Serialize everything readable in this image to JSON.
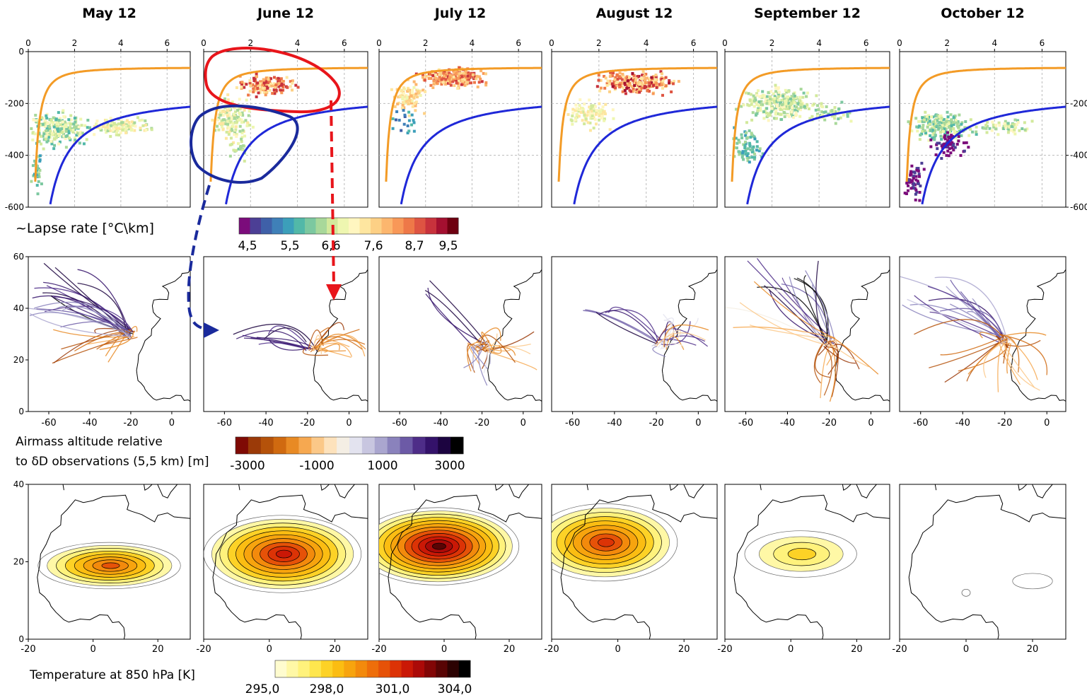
{
  "months": [
    "May 12",
    "June 12",
    "July 12",
    "August 12",
    "September 12",
    "October 12"
  ],
  "rows": {
    "scatter": {
      "x_ticks": [
        "0",
        "2",
        "4",
        "6"
      ],
      "y_ticks_left": [
        "0",
        "-200",
        "-400",
        "-600"
      ],
      "y_ticks_right": [
        "-200",
        "-400",
        "-600"
      ],
      "xlim": [
        0,
        7
      ],
      "ylim": [
        -600,
        0
      ],
      "colorbar": {
        "label": "~Lapse rate [°C\\km]",
        "ticks": [
          "4,5",
          "5,5",
          "6,6",
          "7,6",
          "8,7",
          "9,5"
        ],
        "colors": [
          "#7b0c7b",
          "#4c3f95",
          "#3f60a8",
          "#3f80b8",
          "#3c9fba",
          "#52b8a8",
          "#7cc8a0",
          "#a8d89a",
          "#d2e99c",
          "#eef6b0",
          "#fff6c0",
          "#fee6a0",
          "#fdd085",
          "#fcb66e",
          "#f89858",
          "#ee7848",
          "#de5442",
          "#c8323c",
          "#a41030",
          "#6e0010"
        ]
      },
      "curves": {
        "orange": "#f39b26",
        "blue": "#1f28d8"
      }
    },
    "trajectories": {
      "x_ticks": [
        "-60",
        "-40",
        "-20",
        "0"
      ],
      "y_ticks": [
        "60",
        "40",
        "20",
        "0"
      ],
      "lon_range": [
        -70,
        9
      ],
      "lat_range": [
        0,
        60
      ],
      "colorbar": {
        "label_line1": "Airmass altitude relative",
        "label_line2": "to δD observations (5,5 km) [m]",
        "ticks": [
          "-3000",
          "-1000",
          "1000",
          "3000"
        ],
        "colors": [
          "#7f0a05",
          "#9b3a08",
          "#b5520a",
          "#d06a10",
          "#e88a24",
          "#f6a850",
          "#fbc888",
          "#fde2bc",
          "#f4eee4",
          "#e3e3ef",
          "#c8c6e0",
          "#aaa6cf",
          "#8a82bc",
          "#6c5aa6",
          "#4e2d88",
          "#34126a",
          "#1c0440",
          "#000000"
        ]
      }
    },
    "temperature": {
      "x_ticks": [
        "-20",
        "0",
        "20"
      ],
      "y_ticks": [
        "40",
        "20",
        "0"
      ],
      "lon_range": [
        -20,
        30
      ],
      "lat_range": [
        0,
        40
      ],
      "colorbar": {
        "label": "Temperature at 850 hPa [K]",
        "ticks": [
          "295,0",
          "298,0",
          "301,0",
          "304,0"
        ],
        "colors": [
          "#fffccf",
          "#fff8a6",
          "#fff27c",
          "#fee64e",
          "#fdd226",
          "#fbbd12",
          "#f7a40e",
          "#f38a0c",
          "#ee6e0a",
          "#e65208",
          "#dc3306",
          "#ca1806",
          "#ab0a08",
          "#820606",
          "#580404",
          "#2c0202",
          "#000000"
        ]
      }
    }
  },
  "chart_data": [
    {
      "type": "scatter",
      "title": "~Lapse rate [°C\\km]",
      "xlim": [
        0,
        7
      ],
      "ylim": [
        -600,
        0
      ],
      "series": [
        {
          "name": "May 12",
          "points": [
            [
              0.5,
              -280
            ],
            [
              1,
              -300
            ],
            [
              1.5,
              -320
            ],
            [
              2,
              -300
            ],
            [
              3,
              -290
            ],
            [
              4,
              -300
            ],
            [
              5,
              -310
            ],
            [
              0.3,
              -420
            ]
          ]
        },
        {
          "name": "June 12",
          "points": [
            [
              1.5,
              -110
            ],
            [
              2.5,
              -130
            ],
            [
              3.5,
              -140
            ],
            [
              1,
              -250
            ],
            [
              2,
              -280
            ],
            [
              1.5,
              -350
            ]
          ]
        },
        {
          "name": "July 12",
          "points": [
            [
              2,
              -80
            ],
            [
              3,
              -90
            ],
            [
              4,
              -100
            ],
            [
              5,
              -110
            ],
            [
              1,
              -180
            ],
            [
              1.5,
              -260
            ]
          ]
        },
        {
          "name": "August 12",
          "points": [
            [
              3,
              -100
            ],
            [
              4,
              -120
            ],
            [
              5,
              -140
            ],
            [
              1.5,
              -200
            ],
            [
              2,
              -260
            ]
          ]
        },
        {
          "name": "September 12",
          "points": [
            [
              1,
              -200
            ],
            [
              2,
              -180
            ],
            [
              3,
              -200
            ],
            [
              4,
              -220
            ],
            [
              5,
              -240
            ],
            [
              0.5,
              -400
            ]
          ]
        },
        {
          "name": "October 12",
          "points": [
            [
              1,
              -280
            ],
            [
              2,
              -290
            ],
            [
              3,
              -310
            ],
            [
              4,
              -300
            ],
            [
              5,
              -290
            ],
            [
              0.5,
              -500
            ]
          ]
        }
      ]
    },
    {
      "type": "line",
      "title": "Airmass altitude relative to δD observations (5,5 km) [m]",
      "xlim": [
        -70,
        9
      ],
      "ylim": [
        0,
        60
      ]
    },
    {
      "type": "heatmap",
      "title": "Temperature at 850 hPa [K]",
      "xlim": [
        -20,
        30
      ],
      "ylim": [
        0,
        40
      ],
      "series": [
        {
          "name": "May 12",
          "cx": 5,
          "cy": 20,
          "peak": 300.5
        },
        {
          "name": "June 12",
          "cx": 3,
          "cy": 23,
          "peak": 302
        },
        {
          "name": "July 12",
          "cx": -3,
          "cy": 25,
          "peak": 303
        },
        {
          "name": "August 12",
          "cx": -6,
          "cy": 27,
          "peak": 301
        },
        {
          "name": "September 12",
          "cx": 3,
          "cy": 22,
          "peak": 298.5
        },
        {
          "name": "October 12",
          "cx": 20,
          "cy": 15,
          "peak": 296
        }
      ]
    }
  ],
  "annotations": {
    "red": "#e8151b",
    "navy": "#1a2a9c"
  }
}
